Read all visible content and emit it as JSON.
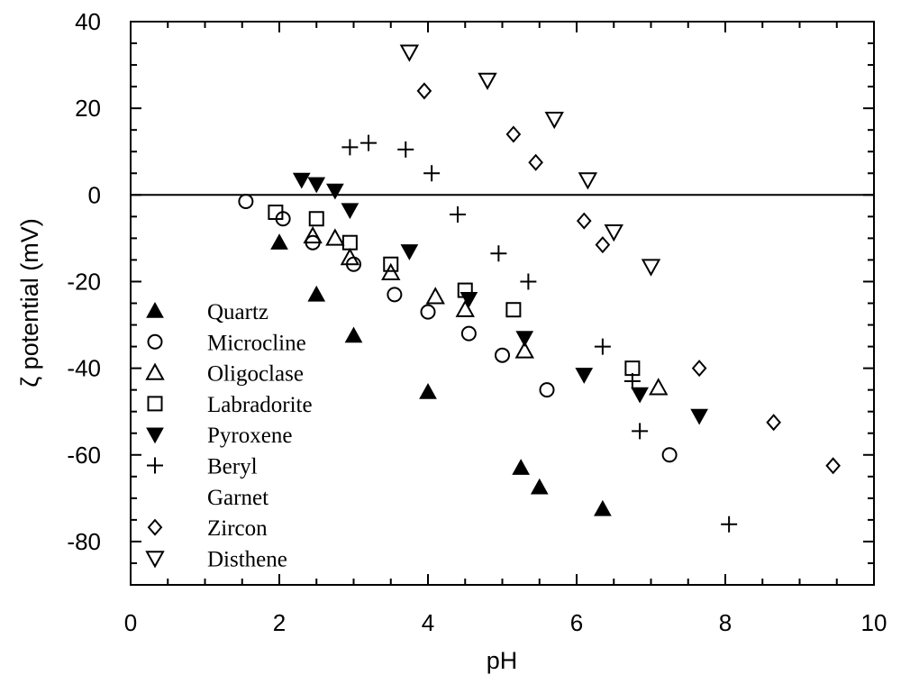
{
  "chart_data": {
    "type": "scatter",
    "xlabel": "pH",
    "ylabel": "ζ potential (mV)",
    "xlim": [
      0,
      10
    ],
    "ylim": [
      -90,
      40
    ],
    "x_ticks": [
      "0",
      "2",
      "4",
      "6",
      "8",
      "10"
    ],
    "y_ticks": [
      "40",
      "20",
      "0",
      "-20",
      "-40",
      "-60",
      "-80"
    ],
    "zero_line": true,
    "grid": false,
    "legend_position": "left",
    "series": [
      {
        "name": "Quartz",
        "marker": "triangle-up-filled",
        "points": [
          [
            2.0,
            -11
          ],
          [
            2.5,
            -23
          ],
          [
            3.0,
            -32.5
          ],
          [
            4.0,
            -45.5
          ],
          [
            5.25,
            -63
          ],
          [
            5.5,
            -67.5
          ],
          [
            6.35,
            -72.5
          ]
        ]
      },
      {
        "name": "Microcline",
        "marker": "circle-open",
        "points": [
          [
            1.55,
            -1.5
          ],
          [
            2.05,
            -5.5
          ],
          [
            2.45,
            -11
          ],
          [
            3.0,
            -16
          ],
          [
            3.55,
            -23
          ],
          [
            4.0,
            -27
          ],
          [
            4.55,
            -32
          ],
          [
            5.0,
            -37
          ],
          [
            5.6,
            -45
          ],
          [
            7.25,
            -60
          ]
        ]
      },
      {
        "name": "Oligoclase",
        "marker": "triangle-up-open",
        "points": [
          [
            2.45,
            -9.5
          ],
          [
            2.75,
            -10
          ],
          [
            2.95,
            -14.5
          ],
          [
            3.5,
            -18
          ],
          [
            4.1,
            -23.5
          ],
          [
            4.5,
            -26.5
          ],
          [
            5.3,
            -36
          ],
          [
            7.1,
            -44.5
          ]
        ]
      },
      {
        "name": "Labradorite",
        "marker": "square-open",
        "points": [
          [
            1.95,
            -4
          ],
          [
            2.5,
            -5.5
          ],
          [
            2.95,
            -11
          ],
          [
            3.5,
            -16
          ],
          [
            4.5,
            -22
          ],
          [
            5.15,
            -26.5
          ],
          [
            6.75,
            -40
          ]
        ]
      },
      {
        "name": "Pyroxene",
        "marker": "triangle-down-filled",
        "points": [
          [
            2.3,
            3.5
          ],
          [
            2.5,
            2.5
          ],
          [
            2.75,
            1
          ],
          [
            2.95,
            -3.5
          ],
          [
            3.75,
            -13
          ],
          [
            4.55,
            -24
          ],
          [
            5.3,
            -33
          ],
          [
            6.1,
            -41.5
          ],
          [
            6.85,
            -46
          ],
          [
            7.65,
            -51
          ]
        ]
      },
      {
        "name": "Beryl",
        "marker": "plus",
        "points": [
          [
            2.95,
            11
          ],
          [
            3.2,
            12
          ],
          [
            3.7,
            10.5
          ],
          [
            4.05,
            5
          ],
          [
            4.4,
            -4.5
          ],
          [
            4.95,
            -13.5
          ],
          [
            5.35,
            -20
          ],
          [
            6.35,
            -35
          ],
          [
            6.75,
            -43
          ],
          [
            6.85,
            -54.5
          ],
          [
            8.05,
            -76
          ]
        ]
      },
      {
        "name": "Garnet",
        "marker": "none",
        "points": []
      },
      {
        "name": "Zircon",
        "marker": "diamond-open",
        "points": [
          [
            3.95,
            24
          ],
          [
            5.15,
            14
          ],
          [
            5.45,
            7.5
          ],
          [
            6.1,
            -6
          ],
          [
            6.35,
            -11.5
          ],
          [
            7.65,
            -40
          ],
          [
            8.65,
            -52.5
          ],
          [
            9.45,
            -62.5
          ]
        ]
      },
      {
        "name": "Disthene",
        "marker": "triangle-down-open",
        "points": [
          [
            3.75,
            33
          ],
          [
            4.8,
            26.5
          ],
          [
            5.7,
            17.5
          ],
          [
            6.15,
            3.5
          ],
          [
            6.5,
            -8.5
          ],
          [
            7.0,
            -16.5
          ]
        ]
      }
    ]
  }
}
